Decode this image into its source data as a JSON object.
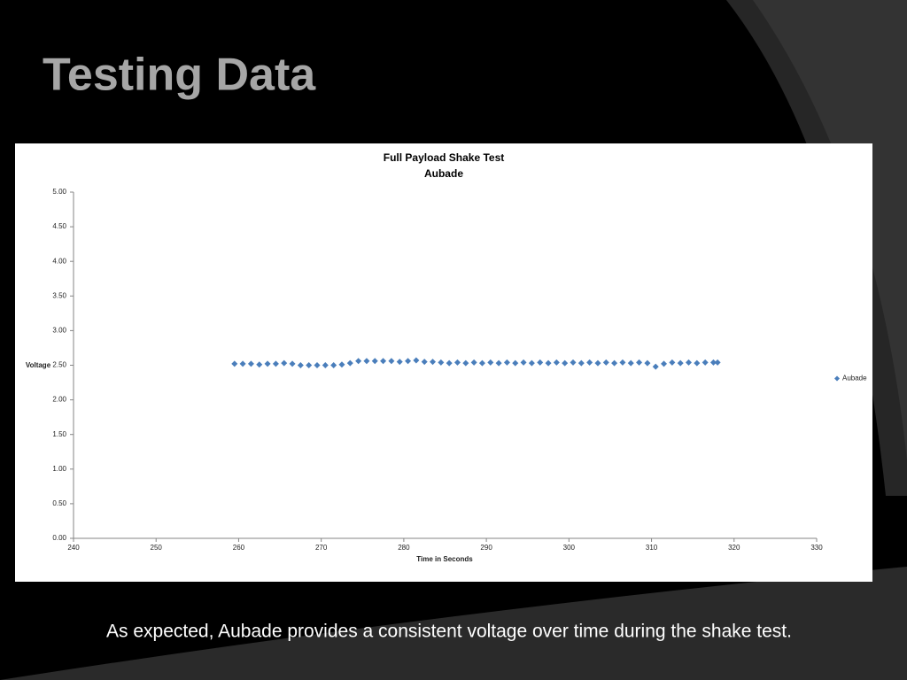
{
  "slide_title": "Testing Data",
  "caption": "As expected, Aubade provides a consistent voltage over time during the shake test.",
  "chart_data": {
    "type": "scatter",
    "title": "Full Payload Shake Test",
    "subtitle": "Aubade",
    "x_label": "Time in Seconds",
    "y_label": "Voltage",
    "legend": "right",
    "x": [
      259.5,
      260.5,
      261.5,
      262.5,
      263.5,
      264.5,
      265.5,
      266.5,
      267.5,
      268.5,
      269.5,
      270.5,
      271.5,
      272.5,
      273.5,
      274.5,
      275.5,
      276.5,
      277.5,
      278.5,
      279.5,
      280.5,
      281.5,
      282.5,
      283.5,
      284.5,
      285.5,
      286.5,
      287.5,
      288.5,
      289.5,
      290.5,
      291.5,
      292.5,
      293.5,
      294.5,
      295.5,
      296.5,
      297.5,
      298.5,
      299.5,
      300.5,
      301.5,
      302.5,
      303.5,
      304.5,
      305.5,
      306.5,
      307.5,
      308.5,
      309.5,
      310.5,
      311.5,
      312.5,
      313.5,
      314.5,
      315.5,
      316.5,
      317.5,
      318
    ],
    "series": [
      {
        "name": "Aubade",
        "color": "#4a7ebb",
        "values": [
          2.52,
          2.52,
          2.52,
          2.51,
          2.52,
          2.52,
          2.53,
          2.52,
          2.5,
          2.5,
          2.5,
          2.5,
          2.5,
          2.51,
          2.53,
          2.56,
          2.56,
          2.56,
          2.56,
          2.56,
          2.55,
          2.56,
          2.57,
          2.55,
          2.55,
          2.54,
          2.53,
          2.54,
          2.53,
          2.54,
          2.53,
          2.54,
          2.53,
          2.54,
          2.53,
          2.54,
          2.53,
          2.54,
          2.53,
          2.54,
          2.53,
          2.54,
          2.53,
          2.54,
          2.53,
          2.54,
          2.53,
          2.54,
          2.53,
          2.54,
          2.53,
          2.48,
          2.52,
          2.54,
          2.53,
          2.54,
          2.53,
          2.54,
          2.54,
          2.54
        ]
      }
    ],
    "xlim": [
      240,
      330
    ],
    "xticks": [
      240,
      250,
      260,
      270,
      280,
      290,
      300,
      310,
      320,
      330
    ],
    "ylim": [
      0,
      5
    ],
    "yticks": [
      {
        "value": 0,
        "label": "0.00"
      },
      {
        "value": 0.5,
        "label": "0.50"
      },
      {
        "value": 1,
        "label": "1.00"
      },
      {
        "value": 1.5,
        "label": "1.50"
      },
      {
        "value": 2,
        "label": "2.00"
      },
      {
        "value": 2.5,
        "label": "2.50"
      },
      {
        "value": 3,
        "label": "3.00"
      },
      {
        "value": 3.5,
        "label": "3.50"
      },
      {
        "value": 4,
        "label": "4.00"
      },
      {
        "value": 4.5,
        "label": "4.50"
      },
      {
        "value": 5,
        "label": "5.00"
      }
    ],
    "grid": false
  }
}
